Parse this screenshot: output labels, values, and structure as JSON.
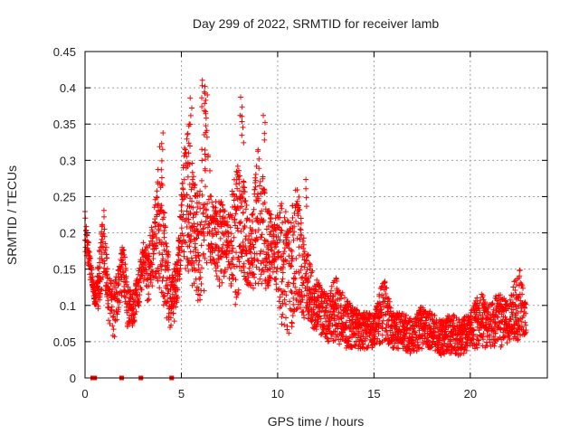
{
  "chart_data": {
    "type": "scatter",
    "title": "Day 299 of 2022, SRMTID for receiver lamb",
    "xlabel": "GPS time / hours",
    "ylabel": "SRMTID / TECUs",
    "xlim": [
      0,
      24
    ],
    "ylim": [
      0,
      0.45
    ],
    "xticks": [
      0,
      5,
      10,
      15,
      20
    ],
    "yticks": [
      0,
      0.05,
      0.1,
      0.15,
      0.2,
      0.25,
      0.3,
      0.35,
      0.4,
      0.45
    ],
    "xtick_labels": [
      "0",
      "5",
      "10",
      "15",
      "20"
    ],
    "ytick_labels": [
      "0",
      "0.05",
      "0.1",
      "0.15",
      "0.2",
      "0.25",
      "0.3",
      "0.35",
      "0.4",
      "0.45"
    ],
    "grid": true,
    "marker": "+",
    "color": "#ff0000",
    "zero_markers_x": [
      0.4,
      0.5,
      1.9,
      2.9,
      4.5
    ],
    "envelope": {
      "x": [
        0,
        0.4,
        0.5,
        0.8,
        1.0,
        1.2,
        1.5,
        1.8,
        2.0,
        2.2,
        2.5,
        2.8,
        3.0,
        3.3,
        3.6,
        3.9,
        4.2,
        4.5,
        4.8,
        5.0,
        5.3,
        5.6,
        5.9,
        6.2,
        6.6,
        7.0,
        7.4,
        7.8,
        8.2,
        8.6,
        9.0,
        9.4,
        9.8,
        10.2,
        10.6,
        11.0,
        11.4,
        11.8,
        12.2,
        12.6,
        13.0,
        13.5,
        14.0,
        14.5,
        15.0,
        15.5,
        16.0,
        16.5,
        17.0,
        17.5,
        18.0,
        18.5,
        19.0,
        19.5,
        20.0,
        20.5,
        21.0,
        21.5,
        22.0,
        22.5,
        22.9
      ],
      "low": [
        0.17,
        0.12,
        0.1,
        0.09,
        0.14,
        0.08,
        0.05,
        0.1,
        0.12,
        0.07,
        0.07,
        0.1,
        0.13,
        0.1,
        0.14,
        0.12,
        0.08,
        0.06,
        0.1,
        0.16,
        0.14,
        0.11,
        0.1,
        0.12,
        0.16,
        0.12,
        0.14,
        0.1,
        0.14,
        0.12,
        0.13,
        0.12,
        0.14,
        0.07,
        0.06,
        0.09,
        0.08,
        0.07,
        0.06,
        0.05,
        0.05,
        0.04,
        0.04,
        0.04,
        0.04,
        0.05,
        0.04,
        0.04,
        0.03,
        0.04,
        0.04,
        0.03,
        0.03,
        0.03,
        0.04,
        0.04,
        0.04,
        0.04,
        0.05,
        0.05,
        0.06
      ],
      "high": [
        0.23,
        0.14,
        0.12,
        0.19,
        0.24,
        0.14,
        0.13,
        0.17,
        0.19,
        0.13,
        0.12,
        0.15,
        0.19,
        0.18,
        0.24,
        0.33,
        0.2,
        0.14,
        0.17,
        0.27,
        0.37,
        0.3,
        0.24,
        0.4,
        0.24,
        0.25,
        0.22,
        0.3,
        0.28,
        0.21,
        0.33,
        0.24,
        0.22,
        0.25,
        0.22,
        0.27,
        0.19,
        0.15,
        0.13,
        0.12,
        0.14,
        0.11,
        0.1,
        0.09,
        0.09,
        0.14,
        0.09,
        0.09,
        0.08,
        0.1,
        0.09,
        0.08,
        0.09,
        0.08,
        0.09,
        0.12,
        0.1,
        0.12,
        0.1,
        0.16,
        0.1
      ]
    },
    "spikes": [
      {
        "x": 6.1,
        "y": 0.415
      },
      {
        "x": 6.2,
        "y": 0.405
      },
      {
        "x": 6.3,
        "y": 0.395
      },
      {
        "x": 8.1,
        "y": 0.39
      },
      {
        "x": 9.3,
        "y": 0.365
      },
      {
        "x": 5.5,
        "y": 0.388
      },
      {
        "x": 4.0,
        "y": 0.34
      },
      {
        "x": 8.2,
        "y": 0.362
      },
      {
        "x": 5.4,
        "y": 0.35
      },
      {
        "x": 11.5,
        "y": 0.275
      }
    ]
  }
}
